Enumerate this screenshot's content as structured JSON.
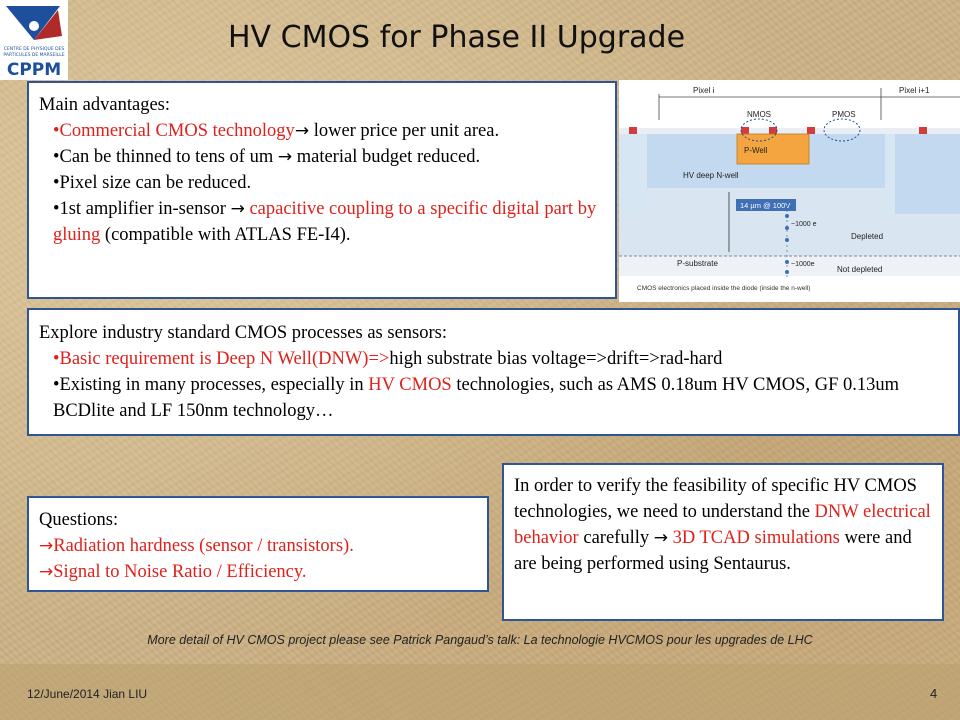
{
  "logo": {
    "line1": "CENTRE DE PHYSIQUE DES",
    "line2": "PARTICULES DE MARSEILLE",
    "name": "CPPM"
  },
  "title": "HV CMOS for Phase II Upgrade",
  "advantages": {
    "heading": "Main advantages:",
    "b1_red": "•Commercial CMOS technology",
    "b1_rest": " lower price per unit area.",
    "b2_a": "•Can be thinned to tens of um ",
    "b2_b": " material budget reduced.",
    "b3": "•Pixel size can be reduced.",
    "b4_a": "•1st amplifier in-sensor ",
    "b4_red": " capacitive coupling to a specific digital part by gluing",
    "b4_rest": " (compatible with ATLAS FE-I4)."
  },
  "figure": {
    "pixel_i": "Pixel i",
    "pixel_i1": "Pixel i+1",
    "nmos": "NMOS",
    "pmos": "PMOS",
    "pwell": "P-Well",
    "hv_nwell": "HV deep N-well",
    "depth": "14 µm @ 100V",
    "e1000": "~1000 e",
    "depleted": "Depleted",
    "psub": "P-substrate",
    "e1000b": "~1000e",
    "not_depleted": "Not depleted",
    "caption": "CMOS electronics placed inside the diode (inside the n-well)"
  },
  "explore": {
    "heading": "Explore industry standard CMOS processes as sensors:",
    "b1_red": "•Basic requirement is Deep N Well(DNW)=>",
    "b1_rest": "high substrate bias voltage=>drift=>rad-hard",
    "b2_a": "•Existing in many processes, especially in ",
    "b2_red": "HV CMOS",
    "b2_b": " technologies, such as AMS  0.18um HV CMOS, GF 0.13um BCDlite and LF 150nm technology…"
  },
  "questions": {
    "heading": "Questions:",
    "q1": "Radiation hardness (sensor / transistors).",
    "q2": "Signal to Noise Ratio / Efficiency."
  },
  "verify": {
    "a": "In order to verify the feasibility of specific HV CMOS technologies, we need to understand the ",
    "red1": "DNW electrical behavior",
    "b": " carefully ",
    "red2": " 3D TCAD simulations",
    "c": " were and are being performed using Sentaurus."
  },
  "note": "More detail of HV CMOS project please see Patrick Pangaud’s talk: La technologie HVCMOS pour les upgrades de LHC",
  "footer": {
    "date": "12/June/2014    Jian LIU",
    "page": "4"
  },
  "icons": {
    "arrow": "arrow-right-icon"
  }
}
